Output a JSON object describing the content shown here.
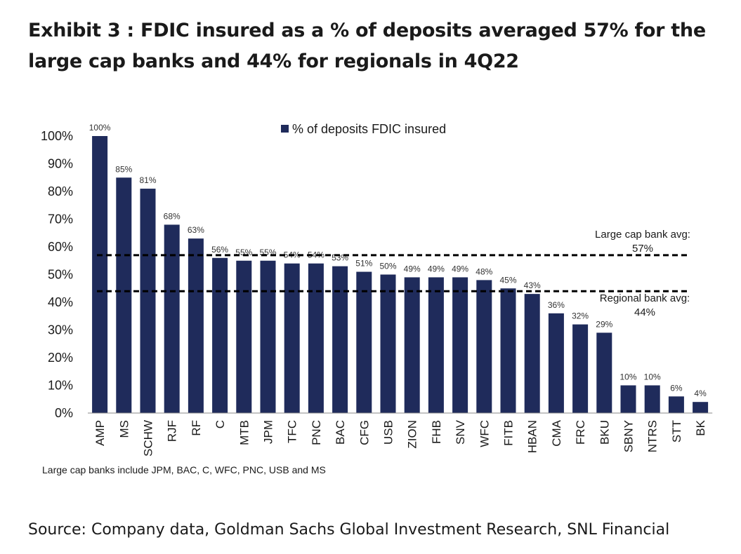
{
  "title": "Exhibit 3 : FDIC insured as a % of deposits averaged 57% for the large cap banks and 44% for regionals in 4Q22",
  "source": "Source: Company data, Goldman Sachs Global Investment Research, SNL Financial",
  "chart_data": {
    "type": "bar",
    "categories": [
      "AMP",
      "MS",
      "SCHW",
      "RJF",
      "RF",
      "C",
      "MTB",
      "JPM",
      "TFC",
      "PNC",
      "BAC",
      "CFG",
      "USB",
      "ZION",
      "FHB",
      "SNV",
      "WFC",
      "FITB",
      "HBAN",
      "CMA",
      "FRC",
      "BKU",
      "SBNY",
      "NTRS",
      "STT",
      "BK"
    ],
    "series": [
      {
        "name": "% of deposits FDIC insured",
        "values": [
          100,
          85,
          81,
          68,
          63,
          56,
          55,
          55,
          54,
          54,
          53,
          51,
          50,
          49,
          49,
          49,
          48,
          45,
          43,
          36,
          32,
          29,
          10,
          10,
          6,
          4
        ],
        "labels": [
          "100%",
          "85%",
          "81%",
          "68%",
          "63%",
          "56%",
          "55%",
          "55%",
          "54%",
          "54%",
          "53%",
          "51%",
          "50%",
          "49%",
          "49%",
          "49%",
          "48%",
          "45%",
          "43%",
          "36%",
          "32%",
          "29%",
          "10%",
          "10%",
          "6%",
          "4%"
        ]
      }
    ],
    "yticks": [
      "0%",
      "10%",
      "20%",
      "30%",
      "40%",
      "50%",
      "60%",
      "70%",
      "80%",
      "90%",
      "100%"
    ],
    "ylim": [
      0,
      100
    ],
    "reference_lines": [
      {
        "value": 57,
        "label_line1": "Large cap bank avg:",
        "label_line2": "57%"
      },
      {
        "value": 44,
        "label_line1": "Regional bank avg:",
        "label_line2": "44%"
      }
    ],
    "legend_position": "top-center",
    "note": "Large cap banks include JPM, BAC, C, WFC, PNC, USB and MS",
    "bar_color": "#1f2b5b",
    "grid": false
  }
}
